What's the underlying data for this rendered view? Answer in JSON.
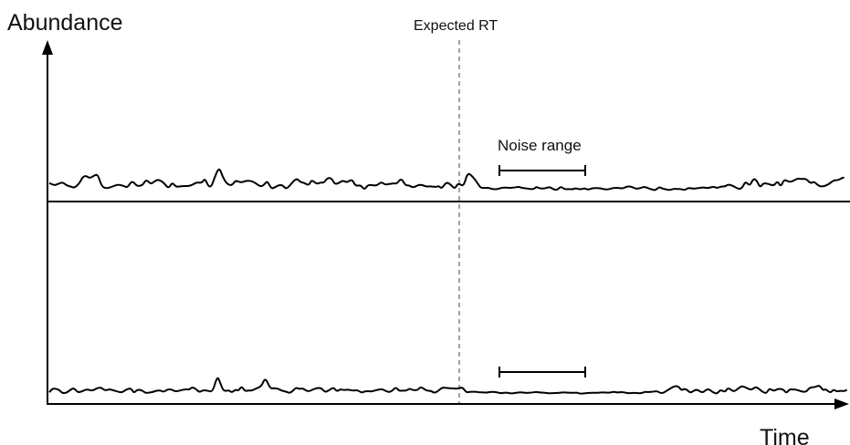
{
  "labels": {
    "y_axis": "Abundance",
    "x_axis": "Time",
    "expected_rt": "Expected RT",
    "noise_range": "Noise range"
  },
  "colors": {
    "trace": "#000000",
    "axis": "#000000",
    "rt_line": "#8c8c8c"
  },
  "icons": {
    "y_arrow": "arrow-up-icon",
    "x_arrow": "arrow-right-icon"
  }
}
